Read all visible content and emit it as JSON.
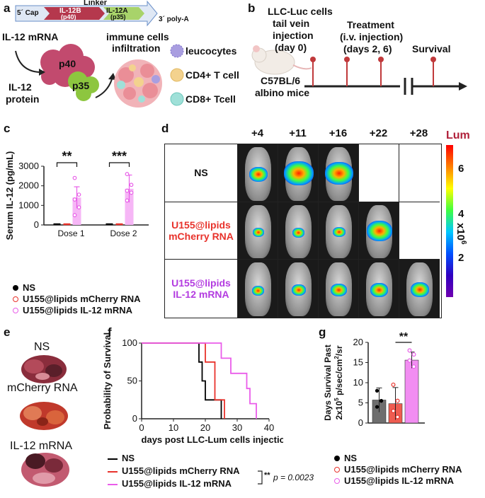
{
  "panel_a": {
    "label": "a",
    "linker": "Linker",
    "cap": "5´ Cap",
    "polyA": "3´ poly-A",
    "il12b": "IL-12B",
    "p40_short": "(p40)",
    "il12a": "IL-12A",
    "p35_short": "(p35)",
    "mrna": "IL-12 mRNA",
    "p40": "p40",
    "p35": "p35",
    "protein_1": "IL-12",
    "protein_2": "protein",
    "immune_1": "immune cells",
    "immune_2": "infiltration",
    "legend": [
      "leucocytes",
      "CD4+ T cell",
      "CD8+ Tcell"
    ],
    "colors": {
      "p40": "#c24a6e",
      "p35": "#8dc63f",
      "il12b_box": "#b5384d",
      "il12a_box": "#a8d36a",
      "leuco": "#a99ee0",
      "cd4": "#f3d28e",
      "cd8": "#9fe0d8"
    }
  },
  "panel_b": {
    "label": "b",
    "cells_1": "LLC-Luc cells",
    "cells_2": "tail vein",
    "cells_3": "injection",
    "cells_4": "(day 0)",
    "treat_1": "Treatment",
    "treat_2": "(i.v. injection)",
    "treat_3": "(days 2, 6)",
    "survival": "Survival",
    "mouse_1": "C57BL/6",
    "mouse_2": "albino mice",
    "pin_color": "#c0393b"
  },
  "panel_c": {
    "label": "c",
    "legend": [
      "NS",
      "U155@lipids mCherry RNA",
      "U155@lipids IL-12 mRNA"
    ]
  },
  "panel_d": {
    "label": "d",
    "days": [
      "+4",
      "+11",
      "+16",
      "+22",
      "+28"
    ],
    "rows": [
      {
        "line1": "NS",
        "line2": "",
        "color": "#111111"
      },
      {
        "line1": "U155@lipids",
        "line2": "mCherry RNA",
        "color": "#e8322b"
      },
      {
        "line1": "U155@lipids",
        "line2": "IL-12 mRNA",
        "color": "#b33be0"
      }
    ],
    "colorbar_title": "Lum",
    "colorbar_ticks": [
      "6",
      "4",
      "2"
    ],
    "colorbar_unit": "x10",
    "colorbar_exp": "6"
  },
  "panel_e": {
    "label": "e",
    "rows": [
      "NS",
      "mCherry RNA",
      "IL-12 mRNA"
    ]
  },
  "panel_f": {
    "label": "f",
    "legend": [
      "NS",
      "U155@lipids mCherry RNA",
      "U155@lipids IL-12 mRNA"
    ],
    "pvalue": "p = 0.0023",
    "stars": "**"
  },
  "panel_g": {
    "label": "g",
    "legend": [
      "NS",
      "U155@lipids mCherry RNA",
      "U155@lipids IL-12 mRNA"
    ]
  },
  "chart_data": [
    {
      "id": "c",
      "type": "bar",
      "title": "",
      "xlabel": "",
      "ylabel": "Serum  IL-12 (pg/mL)",
      "ylim": [
        0,
        3000
      ],
      "yticks": [
        0,
        1000,
        2000,
        3000
      ],
      "categories": [
        "Dose 1",
        "Dose 2"
      ],
      "series": [
        {
          "name": "NS",
          "color": "#000000",
          "values": [
            0,
            0
          ]
        },
        {
          "name": "U155@lipids mCherry RNA",
          "color": "#e8322b",
          "values": [
            0,
            0
          ]
        },
        {
          "name": "U155@lipids IL-12 mRNA",
          "color": "#e85ee8",
          "values": [
            1400,
            1850
          ],
          "errors": [
            550,
            700
          ],
          "points": [
            [
              2400,
              1550,
              1300,
              900,
              500
            ],
            [
              2600,
              2050,
              1750,
              1650,
              1250
            ]
          ]
        }
      ],
      "significance": [
        "**",
        "***"
      ]
    },
    {
      "id": "f",
      "type": "line",
      "title": "",
      "xlabel": "days post LLC-Lum cells injection",
      "ylabel": "Probability of Survival",
      "xlim": [
        0,
        40
      ],
      "ylim": [
        0,
        100
      ],
      "xticks": [
        0,
        10,
        20,
        30,
        40
      ],
      "yticks": [
        0,
        50,
        100
      ],
      "series": [
        {
          "name": "NS",
          "color": "#000000",
          "steps": [
            [
              0,
              100
            ],
            [
              18,
              100
            ],
            [
              18,
              75
            ],
            [
              19,
              75
            ],
            [
              19,
              50
            ],
            [
              20,
              50
            ],
            [
              20,
              25
            ],
            [
              25,
              25
            ],
            [
              25,
              0
            ]
          ]
        },
        {
          "name": "U155@lipids mCherry RNA",
          "color": "#e8322b",
          "steps": [
            [
              0,
              100
            ],
            [
              20,
              100
            ],
            [
              20,
              75
            ],
            [
              23,
              75
            ],
            [
              23,
              25
            ],
            [
              26,
              25
            ],
            [
              26,
              0
            ]
          ]
        },
        {
          "name": "U155@lipids IL-12 mRNA",
          "color": "#ea5cea",
          "steps": [
            [
              0,
              100
            ],
            [
              25,
              100
            ],
            [
              25,
              80
            ],
            [
              28,
              80
            ],
            [
              28,
              60
            ],
            [
              33,
              60
            ],
            [
              33,
              40
            ],
            [
              34,
              40
            ],
            [
              34,
              20
            ],
            [
              36,
              20
            ],
            [
              36,
              0
            ]
          ]
        }
      ]
    },
    {
      "id": "g",
      "type": "bar",
      "title": "",
      "xlabel": "",
      "ylabel": "Days  Survival Past",
      "ylabel2": "2x10",
      "ylabel2_exp": "5",
      "ylabel2_rest": " p/sec/cm",
      "ylabel2_exp2": "2",
      "ylabel2_tail": "/sr",
      "ylim": [
        0,
        20
      ],
      "yticks": [
        0,
        5,
        10,
        15,
        20
      ],
      "categories": [
        "NS",
        "U155@lipids mCherry RNA",
        "U155@lipids IL-12 mRNA"
      ],
      "values": [
        5.7,
        4.8,
        15.6
      ],
      "errors": [
        3,
        4,
        2
      ],
      "colors": [
        "#6e6e6e",
        "#ef5c50",
        "#f28df2"
      ],
      "points": [
        [
          8,
          5.5,
          4,
          5.5
        ],
        [
          9.5,
          5.5,
          3,
          1.5
        ],
        [
          18,
          17,
          15.5,
          14
        ]
      ],
      "significance": "**"
    }
  ]
}
